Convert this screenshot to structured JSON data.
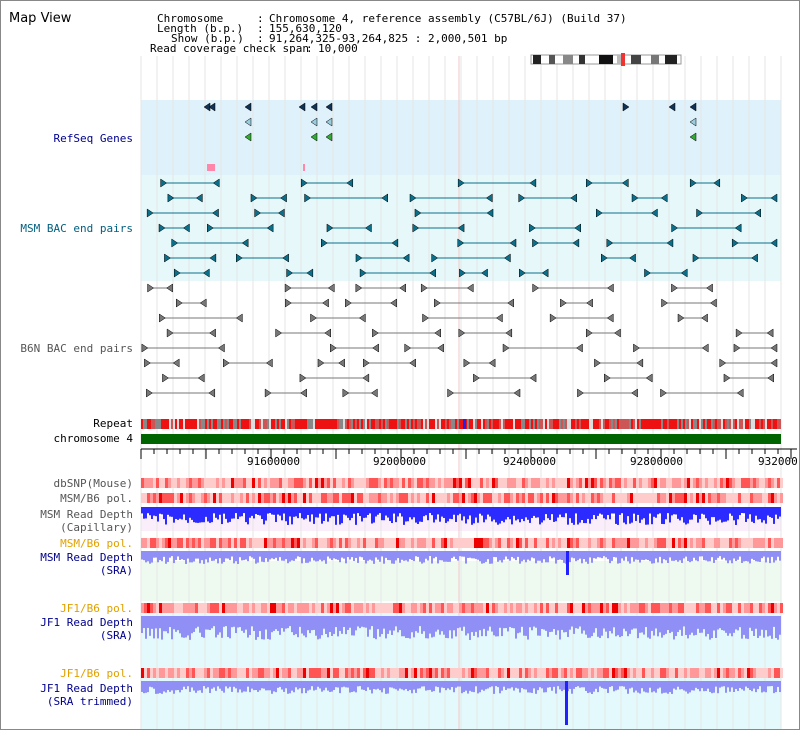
{
  "window_title": "Map View",
  "header": {
    "lines": [
      {
        "key": "Chromosome",
        "value": "Chromosome 4, reference assembly (C57BL/6J) (Build 37)"
      },
      {
        "key": "Length (b.p.)",
        "value": "155,630,120"
      },
      {
        "key": "Show (b.p.)",
        "value": "91,264,325-93,264,825 : 2,000,501 bp"
      },
      {
        "key": "Read coverage check span",
        "value": "10,000"
      }
    ]
  },
  "tracks": {
    "refseq": "RefSeq Genes",
    "msm_bac": "MSM BAC end pairs",
    "b6n_bac": "B6N BAC end pairs",
    "repeat": "Repeat",
    "chromosome": "chromosome 4",
    "dbsnp": "dbSNP(Mouse)",
    "msm_b6_pol": "MSM/B6 pol.",
    "msm_depth_cap_1": "MSM Read Depth",
    "msm_depth_cap_2": "(Capillary)",
    "msm_b6_pol_2": "MSM/B6 pol.",
    "msm_depth_sra_1": "MSM Read Depth",
    "msm_depth_sra_2": "(SRA)",
    "jf1_b6_pol": "JF1/B6 pol.",
    "jf1_depth_sra_1": "JF1 Read Depth",
    "jf1_depth_sra_2": "(SRA)",
    "jf1_b6_pol_2": "JF1/B6 pol.",
    "jf1_depth_trim_1": "JF1 Read Depth",
    "jf1_depth_trim_2": "(SRA trimmed)"
  },
  "axis_ticks": [
    "91600000",
    "92000000",
    "92400000",
    "92800000",
    "932000"
  ],
  "colors": {
    "refseq_bg": "#dff2fb",
    "msm_bac_bg": "#e6f8fa",
    "chromosome_bar": "#006400",
    "depth_blue": "#2b2bff",
    "depth_light_blue": "#8f8ff5",
    "pol_red": "#ff9999"
  }
}
